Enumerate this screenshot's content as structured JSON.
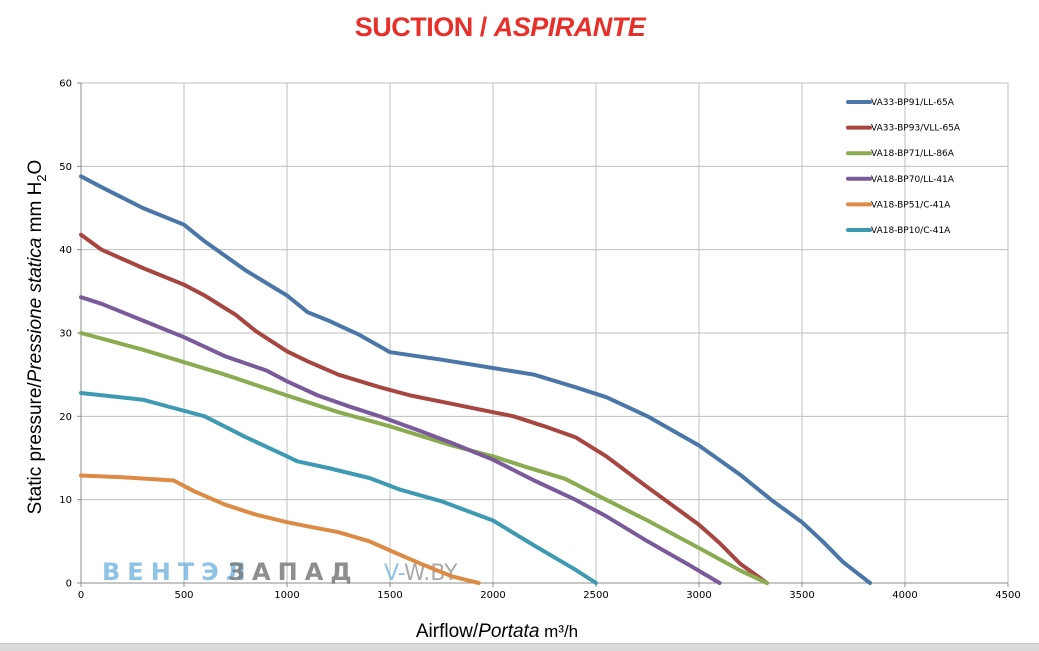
{
  "title": {
    "main": "SUCTION / ",
    "italic": "ASPIRANTE"
  },
  "watermark": {
    "part1": "ВЕНТЭЛ",
    "part2": "ЗАПАД",
    "part3": "V-",
    "part4": "W.BY"
  },
  "chart_data": {
    "type": "line",
    "xlabel": {
      "main": "Airflow/",
      "italic": "Portata",
      "unit": " m³/h"
    },
    "ylabel": {
      "main": "Static pressure/",
      "italic": "Pressione statica",
      "unit": " mm H",
      "sub": "2",
      "unit_end": "O"
    },
    "xlim": [
      0,
      4500
    ],
    "ylim": [
      0,
      60
    ],
    "xticks": [
      0,
      500,
      1000,
      1500,
      2000,
      2500,
      3000,
      3500,
      4000,
      4500
    ],
    "yticks": [
      0,
      10,
      20,
      30,
      40,
      50,
      60
    ],
    "grid": true,
    "legend_position": "top-right",
    "series": [
      {
        "name": "VA33-BP91/LL-65A",
        "color": "#4a76a8",
        "x": [
          0,
          100,
          300,
          500,
          600,
          800,
          1000,
          1100,
          1200,
          1350,
          1500,
          1750,
          2000,
          2200,
          2400,
          2550,
          2750,
          3000,
          3200,
          3350,
          3500,
          3600,
          3700,
          3830
        ],
        "y": [
          48.8,
          47.5,
          45.0,
          43.0,
          41.0,
          37.5,
          34.5,
          32.5,
          31.5,
          29.8,
          27.7,
          26.8,
          25.8,
          25.0,
          23.5,
          22.3,
          20.0,
          16.5,
          13.0,
          10.0,
          7.3,
          5.0,
          2.5,
          0
        ]
      },
      {
        "name": "VA33-BP93/VLL-65A",
        "color": "#a74541",
        "x": [
          0,
          100,
          300,
          500,
          600,
          750,
          850,
          1000,
          1100,
          1250,
          1450,
          1600,
          1800,
          2000,
          2100,
          2250,
          2400,
          2550,
          2750,
          3000,
          3100,
          3200,
          3330
        ],
        "y": [
          41.8,
          40.0,
          37.8,
          35.8,
          34.5,
          32.2,
          30.2,
          27.8,
          26.6,
          25.0,
          23.5,
          22.5,
          21.5,
          20.5,
          20.0,
          18.8,
          17.5,
          15.2,
          11.5,
          7.0,
          4.8,
          2.3,
          0
        ]
      },
      {
        "name": "VA18-BP71/LL-86A",
        "color": "#8aab50",
        "x": [
          0,
          150,
          300,
          500,
          700,
          1000,
          1250,
          1500,
          1800,
          2000,
          2150,
          2350,
          2500,
          2750,
          3000,
          3200,
          3330
        ],
        "y": [
          30.0,
          29.0,
          28.0,
          26.5,
          25.0,
          22.5,
          20.5,
          18.8,
          16.5,
          15.2,
          14.0,
          12.5,
          10.6,
          7.5,
          4.2,
          1.5,
          0
        ]
      },
      {
        "name": "VA18-BP70/LL-41A",
        "color": "#7a5a9b",
        "x": [
          0,
          100,
          300,
          500,
          700,
          900,
          1000,
          1150,
          1300,
          1450,
          1650,
          1800,
          2000,
          2200,
          2400,
          2550,
          2750,
          2950,
          3100
        ],
        "y": [
          34.3,
          33.5,
          31.5,
          29.5,
          27.2,
          25.5,
          24.2,
          22.5,
          21.2,
          20.0,
          18.2,
          16.8,
          14.8,
          12.3,
          10.0,
          8.0,
          5.0,
          2.2,
          0
        ]
      },
      {
        "name": "VA18-BP51/C-41A",
        "color": "#dd8a45",
        "x": [
          0,
          200,
          450,
          550,
          700,
          850,
          1000,
          1100,
          1250,
          1400,
          1500,
          1650,
          1800,
          1930
        ],
        "y": [
          12.9,
          12.7,
          12.3,
          11.0,
          9.4,
          8.2,
          7.3,
          6.8,
          6.1,
          5.0,
          3.9,
          2.3,
          0.8,
          0
        ]
      },
      {
        "name": "VA18-BP10/C-41A",
        "color": "#3e9ab2",
        "x": [
          0,
          300,
          450,
          600,
          800,
          1000,
          1050,
          1200,
          1400,
          1550,
          1750,
          2000,
          2200,
          2400,
          2500
        ],
        "y": [
          22.8,
          22.0,
          21.0,
          20.0,
          17.5,
          15.2,
          14.6,
          13.8,
          12.6,
          11.2,
          9.8,
          7.5,
          4.5,
          1.6,
          0
        ]
      }
    ]
  }
}
